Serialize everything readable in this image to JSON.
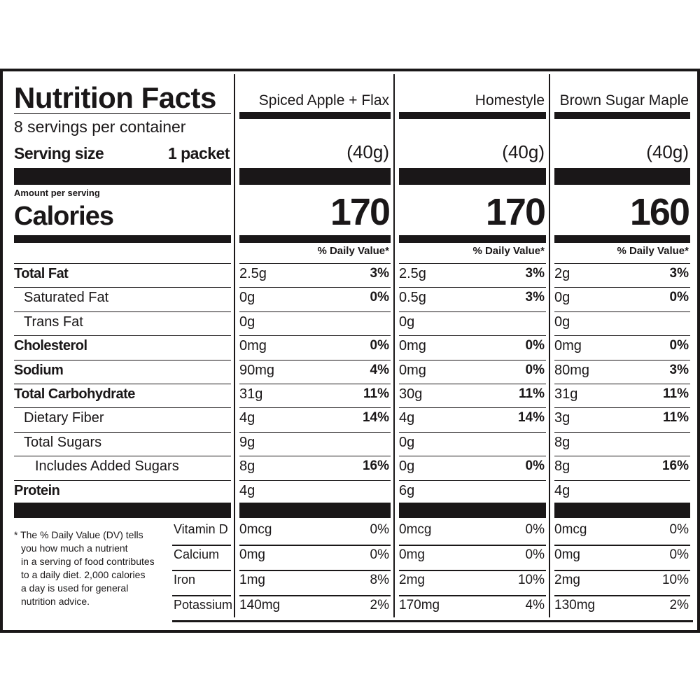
{
  "header": {
    "title": "Nutrition Facts",
    "servings": "8 servings per container",
    "serving_size_label": "Serving size",
    "serving_size_value": "1 packet",
    "amount_per_serving": "Amount per serving",
    "calories_label": "Calories",
    "dv_header": "% Daily Value*"
  },
  "products": [
    {
      "name": "Spiced Apple + Flax",
      "serving": "(40g)",
      "calories": "170"
    },
    {
      "name": "Homestyle",
      "serving": "(40g)",
      "calories": "170"
    },
    {
      "name": "Brown Sugar Maple",
      "serving": "(40g)",
      "calories": "160"
    }
  ],
  "nutrients": [
    {
      "label": "Total Fat",
      "bold": true,
      "indent": 0,
      "values": [
        [
          "2.5g",
          "3%"
        ],
        [
          "2.5g",
          "3%"
        ],
        [
          "2g",
          "3%"
        ]
      ]
    },
    {
      "label": "Saturated Fat",
      "bold": false,
      "indent": 1,
      "values": [
        [
          "0g",
          "0%"
        ],
        [
          "0.5g",
          "3%"
        ],
        [
          "0g",
          "0%"
        ]
      ]
    },
    {
      "label": "Trans Fat",
      "bold": false,
      "indent": 1,
      "values": [
        [
          "0g",
          ""
        ],
        [
          "0g",
          ""
        ],
        [
          "0g",
          ""
        ]
      ]
    },
    {
      "label": "Cholesterol",
      "bold": true,
      "indent": 0,
      "values": [
        [
          "0mg",
          "0%"
        ],
        [
          "0mg",
          "0%"
        ],
        [
          "0mg",
          "0%"
        ]
      ]
    },
    {
      "label": "Sodium",
      "bold": true,
      "indent": 0,
      "values": [
        [
          "90mg",
          "4%"
        ],
        [
          "0mg",
          "0%"
        ],
        [
          "80mg",
          "3%"
        ]
      ]
    },
    {
      "label": "Total Carbohydrate",
      "bold": true,
      "indent": 0,
      "values": [
        [
          "31g",
          "11%"
        ],
        [
          "30g",
          "11%"
        ],
        [
          "31g",
          "11%"
        ]
      ]
    },
    {
      "label": "Dietary Fiber",
      "bold": false,
      "indent": 1,
      "values": [
        [
          "4g",
          "14%"
        ],
        [
          "4g",
          "14%"
        ],
        [
          "3g",
          "11%"
        ]
      ]
    },
    {
      "label": "Total Sugars",
      "bold": false,
      "indent": 1,
      "values": [
        [
          "9g",
          ""
        ],
        [
          "0g",
          ""
        ],
        [
          "8g",
          ""
        ]
      ]
    },
    {
      "label": "Includes Added Sugars",
      "bold": false,
      "indent": 2,
      "values": [
        [
          "8g",
          "16%"
        ],
        [
          "0g",
          "0%"
        ],
        [
          "8g",
          "16%"
        ]
      ]
    },
    {
      "label": "Protein",
      "bold": true,
      "indent": 0,
      "values": [
        [
          "4g",
          ""
        ],
        [
          "6g",
          ""
        ],
        [
          "4g",
          ""
        ]
      ]
    }
  ],
  "vitamins": [
    {
      "label": "Vitamin D",
      "values": [
        [
          "0mcg",
          "0%"
        ],
        [
          "0mcg",
          "0%"
        ],
        [
          "0mcg",
          "0%"
        ]
      ]
    },
    {
      "label": "Calcium",
      "values": [
        [
          "0mg",
          "0%"
        ],
        [
          "0mg",
          "0%"
        ],
        [
          "0mg",
          "0%"
        ]
      ]
    },
    {
      "label": "Iron",
      "values": [
        [
          "1mg",
          "8%"
        ],
        [
          "2mg",
          "10%"
        ],
        [
          "2mg",
          "10%"
        ]
      ]
    },
    {
      "label": "Potassium",
      "values": [
        [
          "140mg",
          "2%"
        ],
        [
          "170mg",
          "4%"
        ],
        [
          "130mg",
          "2%"
        ]
      ]
    }
  ],
  "footnote_lines": [
    "* The % Daily Value (DV) tells",
    "you how much a nutrient",
    "in a serving of food contributes",
    "to a daily diet. 2,000 calories",
    "a day is used for general",
    "nutrition advice."
  ]
}
